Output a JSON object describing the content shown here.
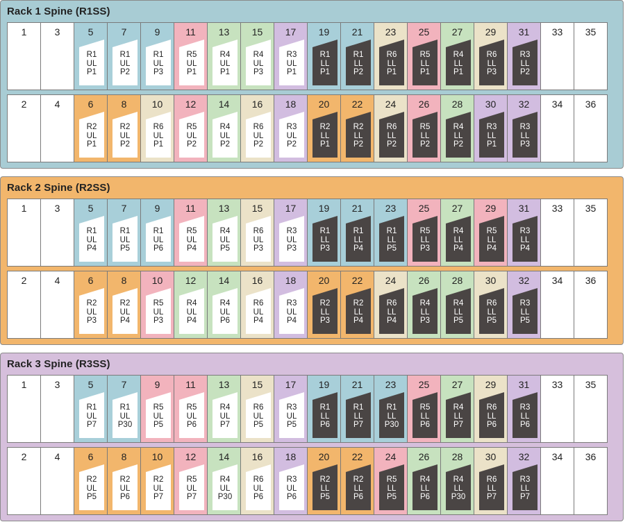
{
  "colors": {
    "white": "#ffffff",
    "blue": "#a8cfd9",
    "pink": "#f2b3bd",
    "green": "#c7e2bf",
    "purple": "#d2bde0",
    "beige": "#ebe2c8",
    "orange": "#f2b66c",
    "tag_light": "#ffffff",
    "tag_dark": "#4a4544"
  },
  "panels": [
    {
      "title": "Rack 1 Spine (R1SS)",
      "bg": "#a8ccd4",
      "rows": [
        [
          {
            "num": "1",
            "color": "white"
          },
          {
            "num": "3",
            "color": "white"
          },
          {
            "num": "5",
            "color": "blue",
            "label": "R1\nUL\nP1",
            "dark": false
          },
          {
            "num": "7",
            "color": "blue",
            "label": "R1\nUL\nP2",
            "dark": false
          },
          {
            "num": "9",
            "color": "blue",
            "label": "R1\nUL\nP3",
            "dark": false
          },
          {
            "num": "11",
            "color": "pink",
            "label": "R5\nUL\nP1",
            "dark": false
          },
          {
            "num": "13",
            "color": "green",
            "label": "R4\nUL\nP1",
            "dark": false
          },
          {
            "num": "15",
            "color": "green",
            "label": "R4\nUL\nP3",
            "dark": false
          },
          {
            "num": "17",
            "color": "purple",
            "label": "R3\nUL\nP1",
            "dark": false
          },
          {
            "num": "19",
            "color": "blue",
            "label": "R1\nLL\nP1",
            "dark": true
          },
          {
            "num": "21",
            "color": "blue",
            "label": "R1\nLL\nP2",
            "dark": true
          },
          {
            "num": "23",
            "color": "beige",
            "label": "R6\nLL\nP1",
            "dark": true
          },
          {
            "num": "25",
            "color": "pink",
            "label": "R5\nLL\nP1",
            "dark": true
          },
          {
            "num": "27",
            "color": "green",
            "label": "R4\nLL\nP1",
            "dark": true
          },
          {
            "num": "29",
            "color": "beige",
            "label": "R6\nLL\nP3",
            "dark": true
          },
          {
            "num": "31",
            "color": "purple",
            "label": "R3\nLL\nP2",
            "dark": true
          },
          {
            "num": "33",
            "color": "white"
          },
          {
            "num": "35",
            "color": "white"
          }
        ],
        [
          {
            "num": "2",
            "color": "white"
          },
          {
            "num": "4",
            "color": "white"
          },
          {
            "num": "6",
            "color": "orange",
            "label": "R2\nUL\nP1",
            "dark": false
          },
          {
            "num": "8",
            "color": "orange",
            "label": "R2\nUL\nP2",
            "dark": false
          },
          {
            "num": "10",
            "color": "beige",
            "label": "R6\nUL\nP1",
            "dark": false
          },
          {
            "num": "12",
            "color": "pink",
            "label": "R5\nUL\nP2",
            "dark": false
          },
          {
            "num": "14",
            "color": "green",
            "label": "R4\nUL\nP2",
            "dark": false
          },
          {
            "num": "16",
            "color": "beige",
            "label": "R6\nUL\nP2",
            "dark": false
          },
          {
            "num": "18",
            "color": "purple",
            "label": "R3\nUL\nP2",
            "dark": false
          },
          {
            "num": "20",
            "color": "orange",
            "label": "R2\nLL\nP1",
            "dark": true
          },
          {
            "num": "22",
            "color": "orange",
            "label": "R2\nLL\nP2",
            "dark": true
          },
          {
            "num": "24",
            "color": "beige",
            "label": "R6\nLL\nP2",
            "dark": true
          },
          {
            "num": "26",
            "color": "pink",
            "label": "R5\nLL\nP2",
            "dark": true
          },
          {
            "num": "28",
            "color": "green",
            "label": "R4\nLL\nP2",
            "dark": true
          },
          {
            "num": "30",
            "color": "purple",
            "label": "R3\nLL\nP1",
            "dark": true
          },
          {
            "num": "32",
            "color": "purple",
            "label": "R3\nLL\nP3",
            "dark": true
          },
          {
            "num": "34",
            "color": "white"
          },
          {
            "num": "36",
            "color": "white"
          }
        ]
      ]
    },
    {
      "title": "Rack 2 Spine (R2SS)",
      "bg": "#f2b66c",
      "rows": [
        [
          {
            "num": "1",
            "color": "white"
          },
          {
            "num": "3",
            "color": "white"
          },
          {
            "num": "5",
            "color": "blue",
            "label": "R1\nUL\nP4",
            "dark": false
          },
          {
            "num": "7",
            "color": "blue",
            "label": "R1\nUL\nP5",
            "dark": false
          },
          {
            "num": "9",
            "color": "blue",
            "label": "R1\nUL\nP6",
            "dark": false
          },
          {
            "num": "11",
            "color": "pink",
            "label": "R5\nUL\nP4",
            "dark": false
          },
          {
            "num": "13",
            "color": "green",
            "label": "R4\nUL\nP5",
            "dark": false
          },
          {
            "num": "15",
            "color": "beige",
            "label": "R6\nUL\nP3",
            "dark": false
          },
          {
            "num": "17",
            "color": "purple",
            "label": "R3\nUL\nP3",
            "dark": false
          },
          {
            "num": "19",
            "color": "blue",
            "label": "R1\nLL\nP3",
            "dark": true
          },
          {
            "num": "21",
            "color": "blue",
            "label": "R1\nLL\nP4",
            "dark": true
          },
          {
            "num": "23",
            "color": "blue",
            "label": "R1\nLL\nP5",
            "dark": true
          },
          {
            "num": "25",
            "color": "pink",
            "label": "R5\nLL\nP3",
            "dark": true
          },
          {
            "num": "27",
            "color": "green",
            "label": "R4\nLL\nP4",
            "dark": true
          },
          {
            "num": "29",
            "color": "pink",
            "label": "R5\nLL\nP4",
            "dark": true
          },
          {
            "num": "31",
            "color": "purple",
            "label": "R3\nLL\nP4",
            "dark": true
          },
          {
            "num": "33",
            "color": "white"
          },
          {
            "num": "35",
            "color": "white"
          }
        ],
        [
          {
            "num": "2",
            "color": "white"
          },
          {
            "num": "4",
            "color": "white"
          },
          {
            "num": "6",
            "color": "orange",
            "label": "R2\nUL\nP3",
            "dark": false
          },
          {
            "num": "8",
            "color": "orange",
            "label": "R2\nUL\nP4",
            "dark": false
          },
          {
            "num": "10",
            "color": "pink",
            "label": "R5\nUL\nP3",
            "dark": false
          },
          {
            "num": "12",
            "color": "green",
            "label": "R4\nUL\nP4",
            "dark": false
          },
          {
            "num": "14",
            "color": "green",
            "label": "R4\nUL\nP6",
            "dark": false
          },
          {
            "num": "16",
            "color": "beige",
            "label": "R6\nUL\nP4",
            "dark": false
          },
          {
            "num": "18",
            "color": "purple",
            "label": "R3\nUL\nP4",
            "dark": false
          },
          {
            "num": "20",
            "color": "orange",
            "label": "R2\nLL\nP3",
            "dark": true
          },
          {
            "num": "22",
            "color": "orange",
            "label": "R2\nLL\nP4",
            "dark": true
          },
          {
            "num": "24",
            "color": "beige",
            "label": "R6\nLL\nP4",
            "dark": true
          },
          {
            "num": "26",
            "color": "green",
            "label": "R4\nLL\nP3",
            "dark": true
          },
          {
            "num": "28",
            "color": "green",
            "label": "R4\nLL\nP5",
            "dark": true
          },
          {
            "num": "30",
            "color": "beige",
            "label": "R6\nLL\nP5",
            "dark": true
          },
          {
            "num": "32",
            "color": "purple",
            "label": "R3\nLL\nP5",
            "dark": true
          },
          {
            "num": "34",
            "color": "white"
          },
          {
            "num": "36",
            "color": "white"
          }
        ]
      ]
    },
    {
      "title": "Rack 3 Spine (R3SS)",
      "bg": "#d6bfdc",
      "rows": [
        [
          {
            "num": "1",
            "color": "white"
          },
          {
            "num": "3",
            "color": "white"
          },
          {
            "num": "5",
            "color": "blue",
            "label": "R1\nUL\nP7",
            "dark": false
          },
          {
            "num": "7",
            "color": "blue",
            "label": "R1\nUL\nP30",
            "dark": false
          },
          {
            "num": "9",
            "color": "pink",
            "label": "R5\nUL\nP5",
            "dark": false
          },
          {
            "num": "11",
            "color": "pink",
            "label": "R5\nUL\nP6",
            "dark": false
          },
          {
            "num": "13",
            "color": "green",
            "label": "R4\nUL\nP7",
            "dark": false
          },
          {
            "num": "15",
            "color": "beige",
            "label": "R6\nUL\nP5",
            "dark": false
          },
          {
            "num": "17",
            "color": "purple",
            "label": "R3\nUL\nP5",
            "dark": false
          },
          {
            "num": "19",
            "color": "blue",
            "label": "R1\nLL\nP6",
            "dark": true
          },
          {
            "num": "21",
            "color": "blue",
            "label": "R1\nLL\nP7",
            "dark": true
          },
          {
            "num": "23",
            "color": "blue",
            "label": "R1\nLL\nP30",
            "dark": true
          },
          {
            "num": "25",
            "color": "pink",
            "label": "R5\nLL\nP6",
            "dark": true
          },
          {
            "num": "27",
            "color": "green",
            "label": "R4\nLL\nP7",
            "dark": true
          },
          {
            "num": "29",
            "color": "beige",
            "label": "R6\nLL\nP6",
            "dark": true
          },
          {
            "num": "31",
            "color": "purple",
            "label": "R3\nLL\nP6",
            "dark": true
          },
          {
            "num": "33",
            "color": "white"
          },
          {
            "num": "35",
            "color": "white"
          }
        ],
        [
          {
            "num": "2",
            "color": "white"
          },
          {
            "num": "4",
            "color": "white"
          },
          {
            "num": "6",
            "color": "orange",
            "label": "R2\nUL\nP5",
            "dark": false
          },
          {
            "num": "8",
            "color": "orange",
            "label": "R2\nUL\nP6",
            "dark": false
          },
          {
            "num": "10",
            "color": "orange",
            "label": "R2\nUL\nP7",
            "dark": false
          },
          {
            "num": "12",
            "color": "pink",
            "label": "R5\nUL\nP7",
            "dark": false
          },
          {
            "num": "14",
            "color": "green",
            "label": "R4\nUL\nP30",
            "dark": false
          },
          {
            "num": "16",
            "color": "beige",
            "label": "R6\nUL\nP6",
            "dark": false
          },
          {
            "num": "18",
            "color": "purple",
            "label": "R3\nUL\nP6",
            "dark": false
          },
          {
            "num": "20",
            "color": "orange",
            "label": "R2\nLL\nP5",
            "dark": true
          },
          {
            "num": "22",
            "color": "orange",
            "label": "R2\nLL\nP6",
            "dark": true
          },
          {
            "num": "24",
            "color": "pink",
            "label": "R5\nLL\nP5",
            "dark": true
          },
          {
            "num": "26",
            "color": "green",
            "label": "R4\nLL\nP6",
            "dark": true
          },
          {
            "num": "28",
            "color": "green",
            "label": "R4\nLL\nP30",
            "dark": true
          },
          {
            "num": "30",
            "color": "beige",
            "label": "R6\nLL\nP7",
            "dark": true
          },
          {
            "num": "32",
            "color": "purple",
            "label": "R3\nLL\nP7",
            "dark": true
          },
          {
            "num": "34",
            "color": "white"
          },
          {
            "num": "36",
            "color": "white"
          }
        ]
      ]
    }
  ]
}
